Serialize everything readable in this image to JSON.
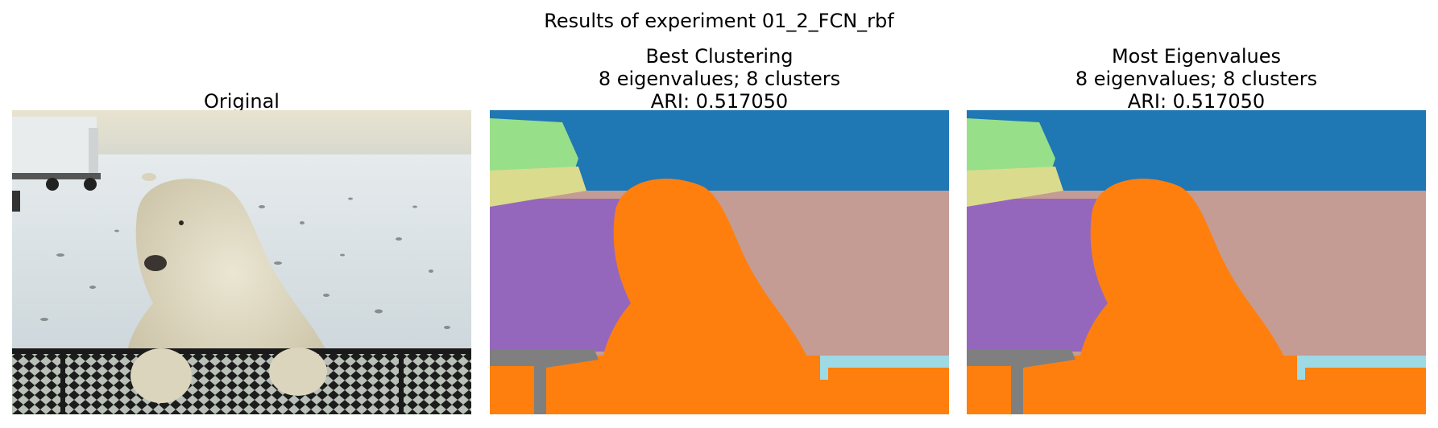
{
  "figure": {
    "suptitle": "Results of experiment 01_2_FCN_rbf"
  },
  "panels": [
    {
      "id": "original",
      "title_lines": [
        "Original"
      ],
      "image": "photo-polar-bear-leaning-on-tundra-vehicle-fence"
    },
    {
      "id": "best-clustering",
      "title_lines": [
        "Best Clustering",
        "8 eigenvalues; 8 clusters",
        "ARI: 0.517050"
      ],
      "image": "segmentation-map"
    },
    {
      "id": "most-eigenvalues",
      "title_lines": [
        "Most Eigenvalues",
        "8 eigenvalues; 8 clusters",
        "ARI: 0.517050"
      ],
      "image": "segmentation-map"
    }
  ],
  "segment_colors": {
    "sky": "#1f77b4",
    "bear": "#ff7f0e",
    "vehicle": "#98df8a",
    "snow_left": "#9467bd",
    "snow_right": "#c49c94",
    "vehicle_base": "#dbdb8d",
    "fence_frame": "#7f7f7f",
    "fence_gaps": "#9edae5"
  }
}
